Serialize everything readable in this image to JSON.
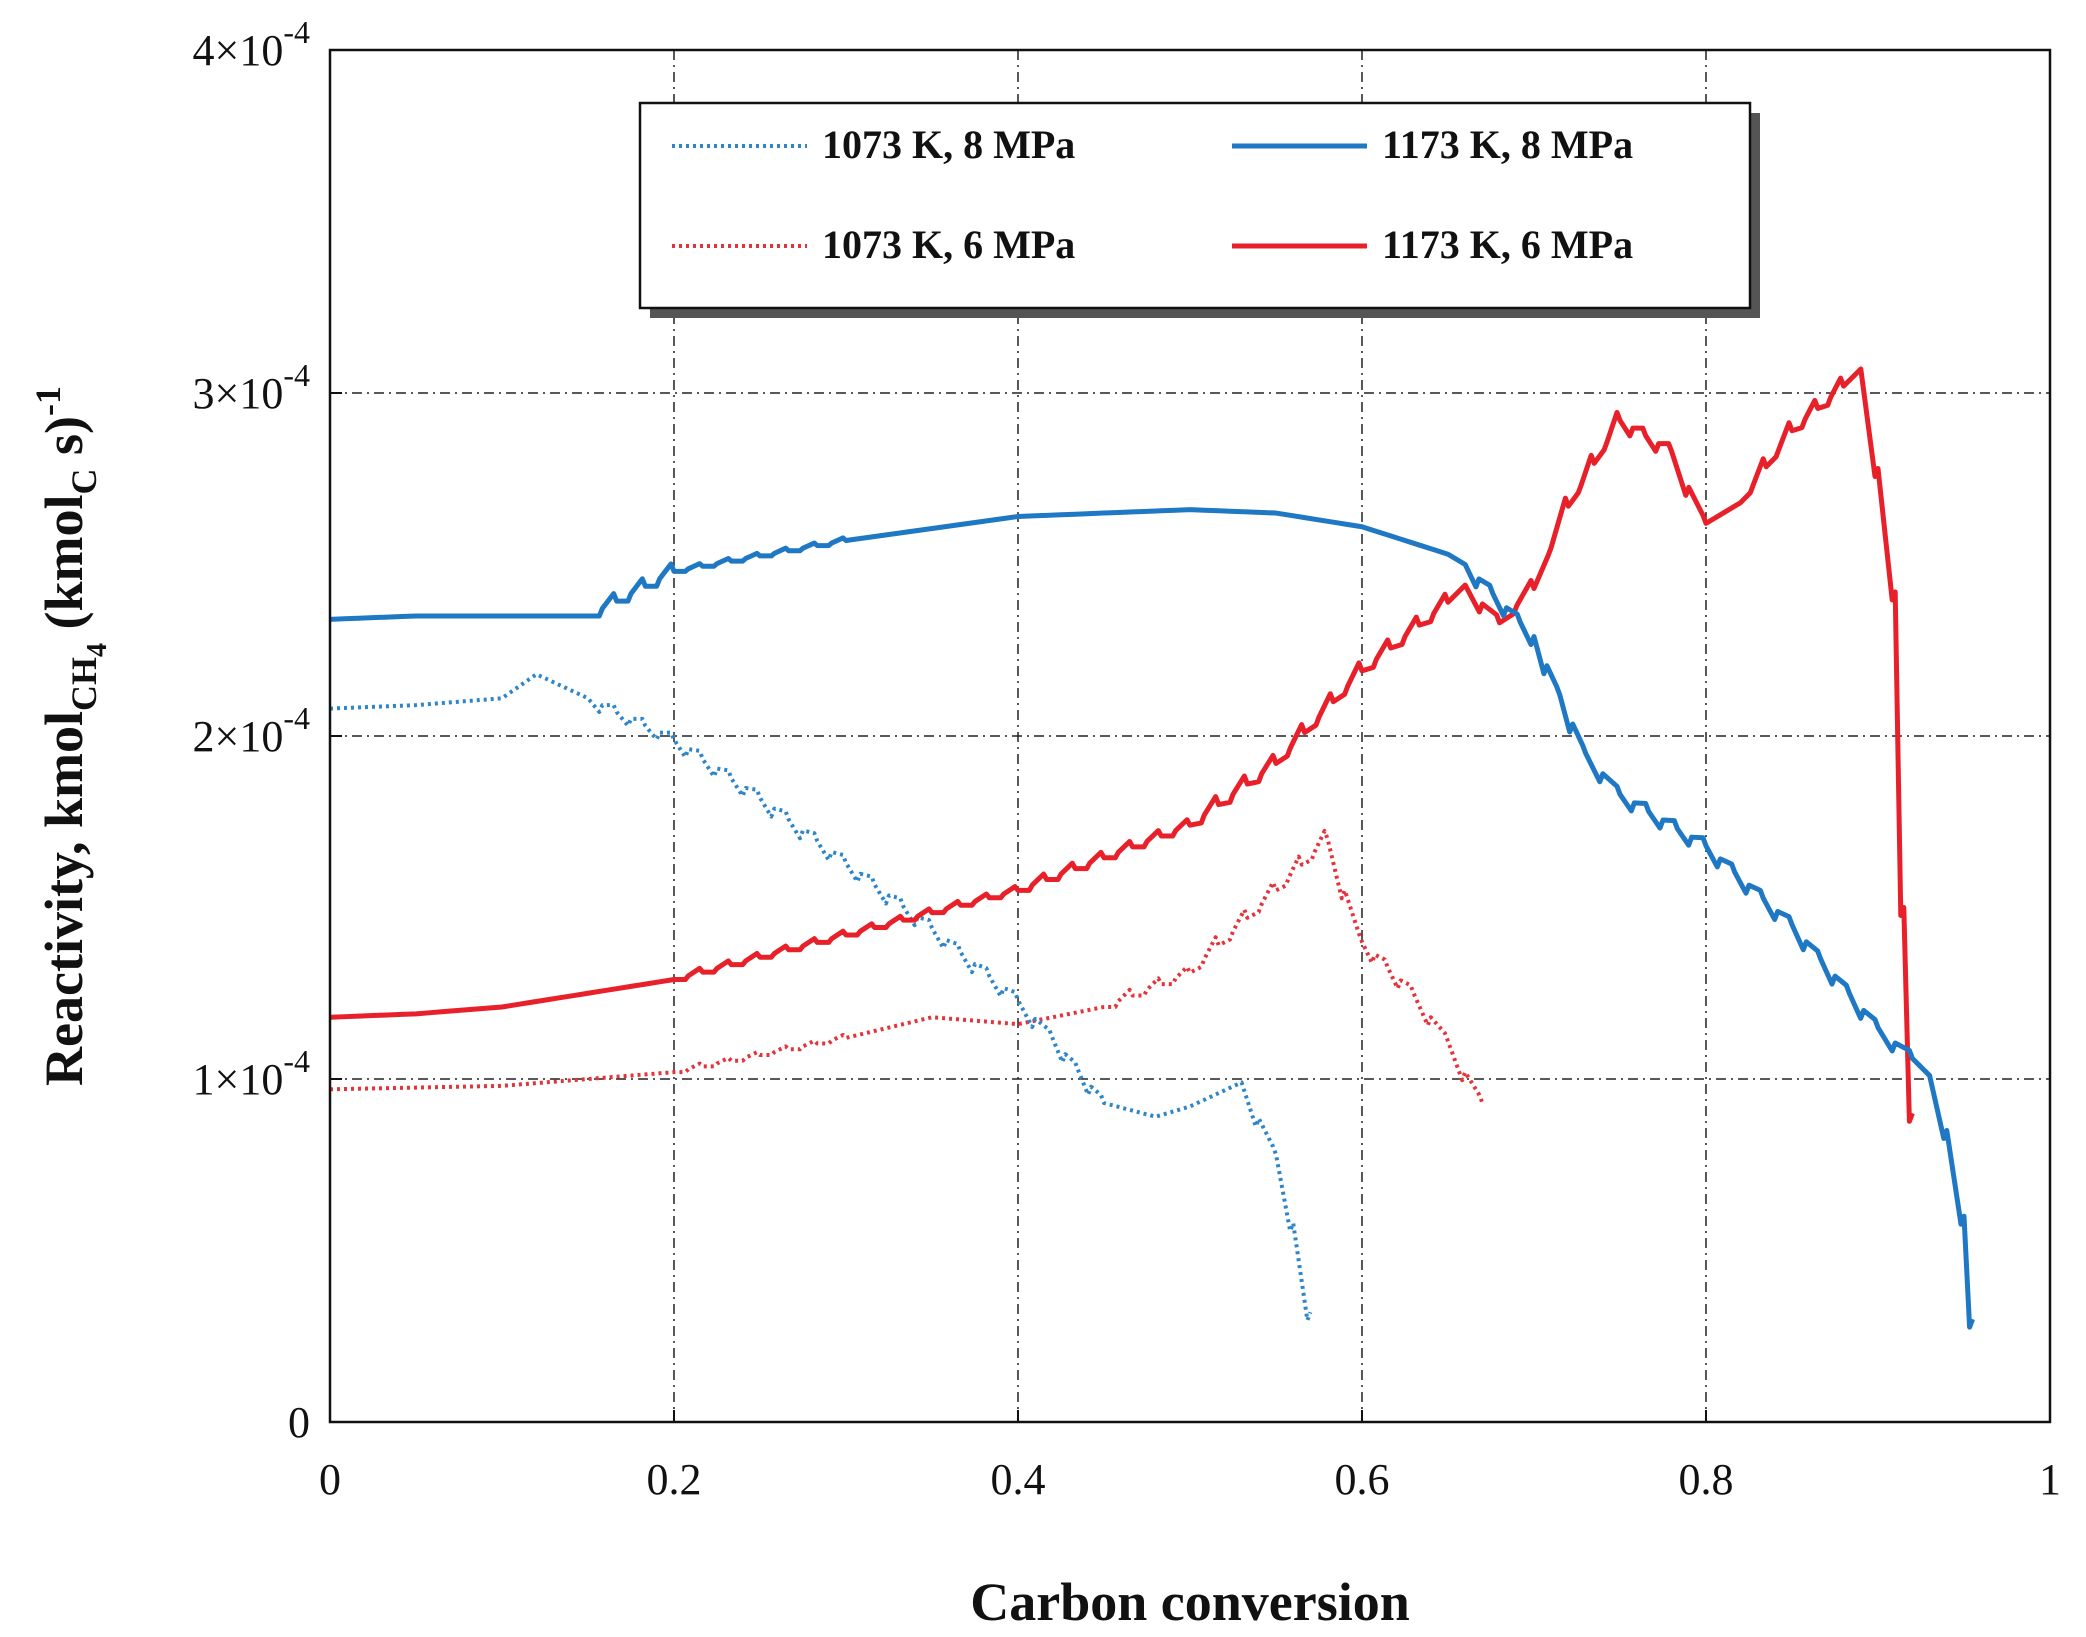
{
  "chart_data": {
    "type": "line",
    "title": "",
    "xlabel": "Carbon conversion",
    "ylabel": {
      "main": "Reactivity, kmol",
      "sub1": "CH",
      "sub1_sub": "4",
      "mid": " (kmol",
      "sub2": "C",
      "end": " s)",
      "sup": "-1"
    },
    "xlim": [
      0,
      1
    ],
    "ylim": [
      0,
      0.0004
    ],
    "grid": true,
    "legend_position": "top-center",
    "x_ticks": [
      {
        "value": 0,
        "label": "0"
      },
      {
        "value": 0.2,
        "label": "0.2"
      },
      {
        "value": 0.4,
        "label": "0.4"
      },
      {
        "value": 0.6,
        "label": "0.6"
      },
      {
        "value": 0.8,
        "label": "0.8"
      },
      {
        "value": 1,
        "label": "1"
      }
    ],
    "y_ticks": [
      {
        "value": 0,
        "base": "0",
        "exp": ""
      },
      {
        "value": 0.0001,
        "base": "1×10",
        "exp": "-4"
      },
      {
        "value": 0.0002,
        "base": "2×10",
        "exp": "-4"
      },
      {
        "value": 0.0003,
        "base": "3×10",
        "exp": "-4"
      },
      {
        "value": 0.0004,
        "base": "4×10",
        "exp": "-4"
      }
    ],
    "series": [
      {
        "name": "1073 K, 8 MPa",
        "color": "#2E86C8",
        "style": "dotted",
        "x": [
          0,
          0.05,
          0.1,
          0.12,
          0.15,
          0.2,
          0.25,
          0.3,
          0.35,
          0.4,
          0.42,
          0.45,
          0.48,
          0.5,
          0.53,
          0.55,
          0.56,
          0.57
        ],
        "y": [
          0.000208,
          0.000209,
          0.000211,
          0.000218,
          0.000211,
          0.000199,
          0.000182,
          0.000163,
          0.000144,
          0.000123,
          0.000112,
          9.3e-05,
          8.9e-05,
          9.2e-05,
          9.9e-05,
          7.8e-05,
          5.8e-05,
          3.2e-05
        ]
      },
      {
        "name": "1173 K, 8 MPa",
        "color": "#1F78C4",
        "style": "solid",
        "x": [
          0,
          0.05,
          0.1,
          0.15,
          0.2,
          0.3,
          0.4,
          0.5,
          0.55,
          0.6,
          0.65,
          0.66,
          0.7,
          0.73,
          0.75,
          0.8,
          0.85,
          0.9,
          0.92,
          0.93,
          0.94,
          0.95,
          0.955
        ],
        "y": [
          0.000234,
          0.000235,
          0.000235,
          0.000235,
          0.000248,
          0.000257,
          0.000264,
          0.000266,
          0.000265,
          0.000261,
          0.000253,
          0.00025,
          0.000229,
          0.000195,
          0.000183,
          0.000168,
          0.000145,
          0.000115,
          0.000106,
          0.000101,
          8.5e-05,
          6e-05,
          3e-05
        ]
      },
      {
        "name": "1073 K, 6 MPa",
        "color": "#E5333A",
        "style": "dotted",
        "x": [
          0,
          0.1,
          0.2,
          0.3,
          0.35,
          0.4,
          0.45,
          0.5,
          0.55,
          0.58,
          0.6,
          0.63,
          0.65,
          0.67
        ],
        "y": [
          9.7e-05,
          9.8e-05,
          0.000102,
          0.000112,
          0.000118,
          0.000116,
          0.000121,
          0.000131,
          0.000155,
          0.00017,
          0.00014,
          0.000125,
          0.000111,
          9.3e-05
        ]
      },
      {
        "name": "1173 K, 6 MPa",
        "color": "#E8202A",
        "style": "solid",
        "x": [
          0,
          0.05,
          0.1,
          0.2,
          0.3,
          0.4,
          0.5,
          0.55,
          0.6,
          0.65,
          0.66,
          0.68,
          0.7,
          0.72,
          0.75,
          0.78,
          0.8,
          0.82,
          0.85,
          0.88,
          0.89,
          0.9,
          0.91,
          0.915,
          0.92
        ],
        "y": [
          0.000118,
          0.000119,
          0.000121,
          0.000129,
          0.000142,
          0.000155,
          0.000174,
          0.000192,
          0.000219,
          0.000239,
          0.000244,
          0.000233,
          0.000243,
          0.000267,
          0.000292,
          0.000283,
          0.000262,
          0.000268,
          0.000289,
          0.000302,
          0.000307,
          0.000278,
          0.000242,
          0.00015,
          9e-05
        ]
      }
    ]
  }
}
